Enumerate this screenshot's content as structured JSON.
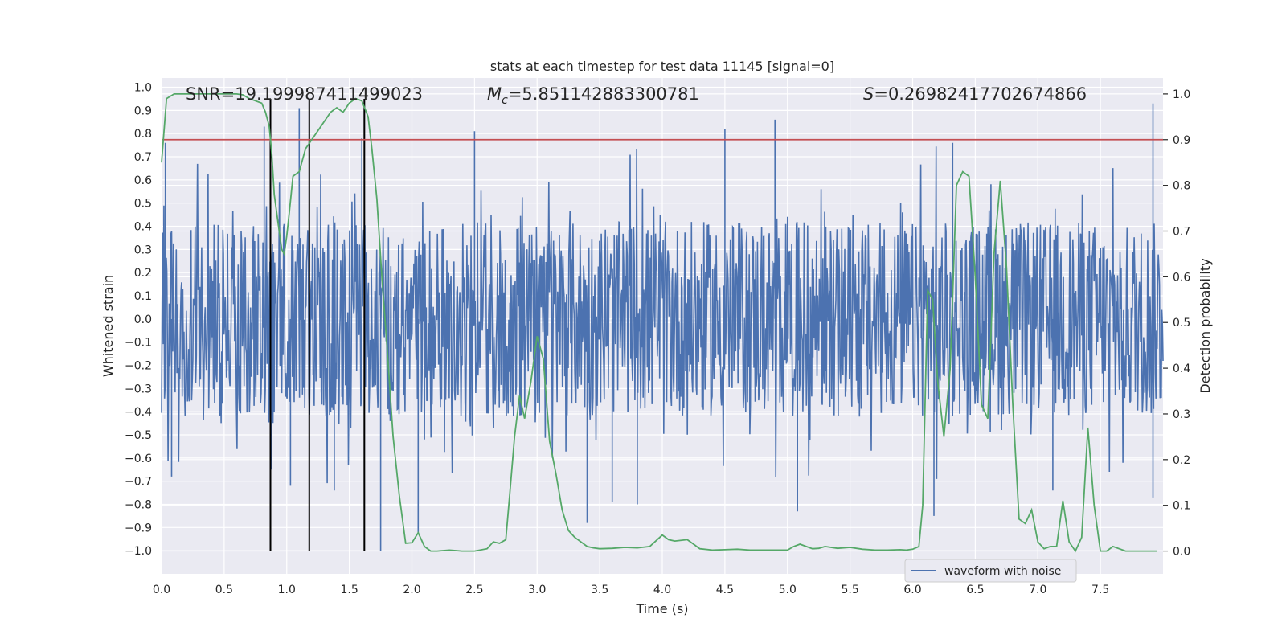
{
  "chart_data": {
    "type": "line",
    "title": "stats at each timestep for test data 11145 [signal=0]",
    "xlabel": "Time (s)",
    "ylabel_left": "Whitened strain",
    "ylabel_right": "Detection probability",
    "xlim": [
      0.0,
      8.0
    ],
    "ylim_left": [
      -1.1,
      1.04
    ],
    "ylim_right": [
      -0.05,
      1.035
    ],
    "x_ticks": [
      0.0,
      0.5,
      1.0,
      1.5,
      2.0,
      2.5,
      3.0,
      3.5,
      4.0,
      4.5,
      5.0,
      5.5,
      6.0,
      6.5,
      7.0,
      7.5
    ],
    "x_tick_labels": [
      "0.0",
      "0.5",
      "1.0",
      "1.5",
      "2.0",
      "2.5",
      "3.0",
      "3.5",
      "4.0",
      "4.5",
      "5.0",
      "5.5",
      "6.0",
      "6.5",
      "7.0",
      "7.5"
    ],
    "y_left_ticks": [
      1.0,
      0.9,
      0.8,
      0.7,
      0.6,
      0.5,
      0.4,
      0.3,
      0.2,
      0.1,
      0.0,
      -0.1,
      -0.2,
      -0.3,
      -0.4,
      -0.5,
      -0.6,
      -0.7,
      -0.8,
      -0.9,
      -1.0
    ],
    "y_left_tick_labels": [
      "1.0",
      "0.9",
      "0.8",
      "0.7",
      "0.6",
      "0.5",
      "0.4",
      "0.3",
      "0.2",
      "0.1",
      "0.0",
      "−0.1",
      "−0.2",
      "−0.3",
      "−0.4",
      "−0.5",
      "−0.6",
      "−0.7",
      "−0.8",
      "−0.9",
      "−1.0"
    ],
    "y_right_ticks": [
      1.0,
      0.9,
      0.8,
      0.7,
      0.6,
      0.5,
      0.4,
      0.3,
      0.2,
      0.1,
      0.0
    ],
    "y_right_tick_labels": [
      "1.0",
      "0.9",
      "0.8",
      "0.7",
      "0.6",
      "0.5",
      "0.4",
      "0.3",
      "0.2",
      "0.1",
      "0.0"
    ],
    "annotations": {
      "snr": "SNR=19.199987411499023",
      "mc_symbol": "M",
      "mc_sub": "c",
      "mc_value": "=5.851142883300781",
      "s_symbol": "S",
      "s_value": "=0.26982417702674866"
    },
    "legend": {
      "label": "waveform with noise",
      "placement": "lower-right"
    },
    "colors": {
      "background": "#eaeaf2",
      "grid": "#ffffff",
      "waveform": "#4c72b0",
      "probability": "#55a868",
      "threshold": "#c44e52",
      "marker": "#000000",
      "text": "#262626"
    },
    "threshold": 0.9,
    "vertical_markers": [
      0.87,
      1.18,
      1.62
    ],
    "waveform": {
      "duration": 8.0,
      "typical_range": [
        -0.42,
        0.42
      ],
      "peaks": [
        [
          0.03,
          0.76
        ],
        [
          0.82,
          0.83
        ],
        [
          0.87,
          0.93
        ],
        [
          1.1,
          0.91
        ],
        [
          1.6,
          0.78
        ],
        [
          2.5,
          0.81
        ],
        [
          4.5,
          0.82
        ],
        [
          4.9,
          0.86
        ],
        [
          6.32,
          0.76
        ],
        [
          7.92,
          0.93
        ]
      ],
      "troughs": [
        [
          0.08,
          -0.68
        ],
        [
          0.88,
          -0.65
        ],
        [
          1.03,
          -0.72
        ],
        [
          1.38,
          -0.74
        ],
        [
          1.75,
          -1.0
        ],
        [
          2.05,
          -0.93
        ],
        [
          3.4,
          -0.88
        ],
        [
          3.6,
          -0.79
        ],
        [
          3.8,
          -0.8
        ],
        [
          5.08,
          -0.83
        ],
        [
          6.17,
          -0.85
        ],
        [
          7.12,
          -0.74
        ],
        [
          7.92,
          -0.77
        ]
      ]
    },
    "detection_probability": {
      "x": [
        0.0,
        0.04,
        0.1,
        0.2,
        0.3,
        0.4,
        0.5,
        0.6,
        0.65,
        0.7,
        0.8,
        0.83,
        0.86,
        0.88,
        0.9,
        0.93,
        0.96,
        0.98,
        1.0,
        1.02,
        1.05,
        1.1,
        1.15,
        1.2,
        1.25,
        1.3,
        1.35,
        1.4,
        1.45,
        1.5,
        1.55,
        1.6,
        1.65,
        1.68,
        1.72,
        1.76,
        1.8,
        1.85,
        1.9,
        1.95,
        2.0,
        2.05,
        2.1,
        2.15,
        2.2,
        2.3,
        2.4,
        2.5,
        2.6,
        2.65,
        2.7,
        2.75,
        2.78,
        2.82,
        2.86,
        2.9,
        2.95,
        3.0,
        3.05,
        3.1,
        3.15,
        3.2,
        3.25,
        3.3,
        3.35,
        3.4,
        3.45,
        3.5,
        3.6,
        3.7,
        3.8,
        3.9,
        4.0,
        4.05,
        4.1,
        4.2,
        4.25,
        4.3,
        4.4,
        4.5,
        4.6,
        4.7,
        4.8,
        4.9,
        5.0,
        5.05,
        5.1,
        5.2,
        5.25,
        5.3,
        5.4,
        5.5,
        5.6,
        5.7,
        5.8,
        5.9,
        5.95,
        6.0,
        6.05,
        6.08,
        6.12,
        6.16,
        6.2,
        6.25,
        6.3,
        6.35,
        6.4,
        6.45,
        6.5,
        6.55,
        6.6,
        6.65,
        6.7,
        6.75,
        6.8,
        6.85,
        6.9,
        6.95,
        7.0,
        7.05,
        7.1,
        7.15,
        7.2,
        7.25,
        7.3,
        7.35,
        7.4,
        7.45,
        7.5,
        7.55,
        7.6,
        7.65,
        7.7,
        7.8,
        7.9,
        7.95
      ],
      "y": [
        0.85,
        0.99,
        1.0,
        1.0,
        1.0,
        1.0,
        1.0,
        1.0,
        0.998,
        0.99,
        0.98,
        0.96,
        0.93,
        0.87,
        0.78,
        0.72,
        0.66,
        0.65,
        0.69,
        0.74,
        0.82,
        0.83,
        0.88,
        0.9,
        0.92,
        0.94,
        0.96,
        0.97,
        0.96,
        0.98,
        0.99,
        0.985,
        0.95,
        0.88,
        0.77,
        0.6,
        0.45,
        0.25,
        0.12,
        0.017,
        0.018,
        0.04,
        0.01,
        0.0,
        0.0,
        0.002,
        0.0,
        0.0,
        0.005,
        0.02,
        0.017,
        0.025,
        0.12,
        0.25,
        0.34,
        0.29,
        0.37,
        0.47,
        0.42,
        0.24,
        0.17,
        0.09,
        0.045,
        0.03,
        0.02,
        0.01,
        0.007,
        0.005,
        0.006,
        0.008,
        0.007,
        0.01,
        0.035,
        0.025,
        0.022,
        0.025,
        0.015,
        0.005,
        0.002,
        0.003,
        0.004,
        0.002,
        0.002,
        0.002,
        0.002,
        0.01,
        0.015,
        0.005,
        0.006,
        0.01,
        0.006,
        0.008,
        0.004,
        0.002,
        0.002,
        0.003,
        0.002,
        0.004,
        0.01,
        0.1,
        0.57,
        0.55,
        0.37,
        0.25,
        0.4,
        0.8,
        0.83,
        0.82,
        0.6,
        0.32,
        0.29,
        0.65,
        0.81,
        0.62,
        0.32,
        0.07,
        0.06,
        0.09,
        0.02,
        0.005,
        0.01,
        0.01,
        0.11,
        0.02,
        0.0,
        0.03,
        0.27,
        0.1,
        0.0,
        0.0,
        0.01,
        0.005,
        0.0,
        0.0,
        0.0,
        0.0
      ]
    }
  }
}
